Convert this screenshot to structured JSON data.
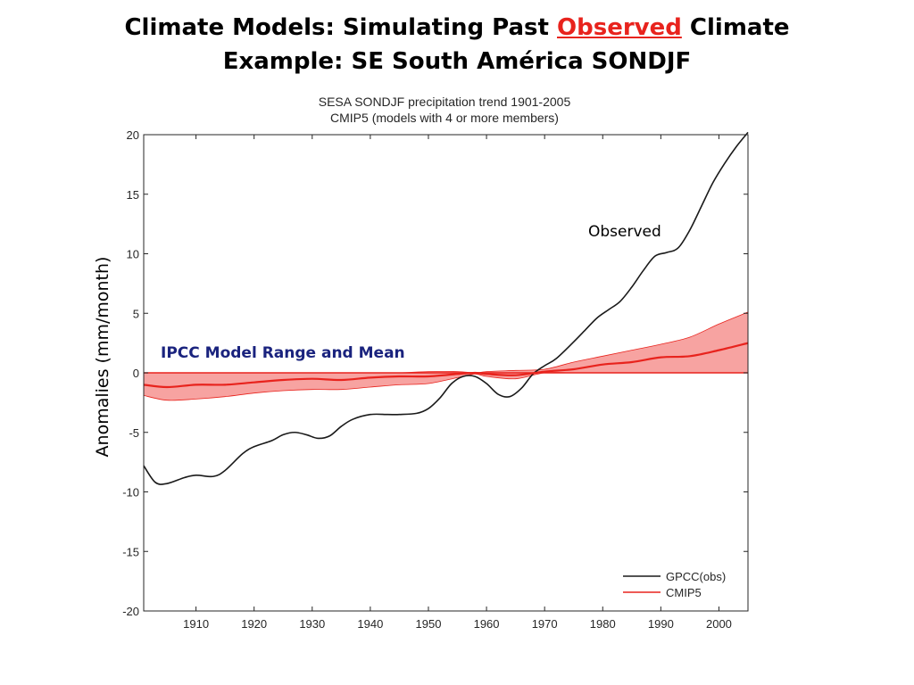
{
  "slide": {
    "title_part1": "Climate Models: Simulating Past ",
    "title_highlight": "Observed",
    "title_part2": " Climate",
    "title_line2": "Example:  SE South América SONDJF"
  },
  "annotations": {
    "observed": "Observed",
    "ipcc": "IPCC Model Range and Mean"
  },
  "colors": {
    "observed_line": "#1a1a1a",
    "model_mean": "#e8231d",
    "model_band": "#f7a3a1",
    "highlight": "#e8231d",
    "ipcc_label": "#1a237e"
  },
  "chart_data": {
    "type": "line",
    "title_line1": "SESA SONDJF precipitation trend 1901-2005",
    "title_line2": "CMIP5 (models with 4 or more members)",
    "xlabel": "",
    "ylabel": "Anomalies (mm/month)",
    "xlim": [
      1901,
      2005
    ],
    "ylim": [
      -20,
      20
    ],
    "xticks": [
      1910,
      1920,
      1930,
      1940,
      1950,
      1960,
      1970,
      1980,
      1990,
      2000
    ],
    "yticks": [
      -20,
      -15,
      -10,
      -5,
      0,
      5,
      10,
      15,
      20
    ],
    "legend_position": "bottom-right",
    "series": [
      {
        "name": "GPCC(obs)",
        "kind": "line",
        "x": [
          1901,
          1903,
          1905,
          1908,
          1910,
          1913,
          1915,
          1918,
          1920,
          1923,
          1925,
          1927,
          1929,
          1931,
          1933,
          1935,
          1937,
          1940,
          1943,
          1945,
          1948,
          1950,
          1952,
          1954,
          1956,
          1958,
          1960,
          1962,
          1964,
          1966,
          1968,
          1970,
          1972,
          1975,
          1977,
          1979,
          1981,
          1983,
          1985,
          1987,
          1989,
          1991,
          1993,
          1995,
          1997,
          1999,
          2001,
          2003,
          2005
        ],
        "values": [
          -7.8,
          -9.2,
          -9.3,
          -8.8,
          -8.6,
          -8.7,
          -8.2,
          -6.8,
          -6.2,
          -5.7,
          -5.2,
          -5.0,
          -5.2,
          -5.5,
          -5.3,
          -4.5,
          -3.9,
          -3.5,
          -3.5,
          -3.5,
          -3.4,
          -3.0,
          -2.1,
          -0.9,
          -0.3,
          -0.3,
          -0.9,
          -1.8,
          -2.0,
          -1.3,
          -0.1,
          0.6,
          1.2,
          2.6,
          3.6,
          4.6,
          5.3,
          6.0,
          7.2,
          8.6,
          9.8,
          10.1,
          10.5,
          12.0,
          14.0,
          16.0,
          17.6,
          19.0,
          20.2
        ]
      },
      {
        "name": "CMIP5",
        "kind": "line",
        "x": [
          1901,
          1905,
          1910,
          1915,
          1920,
          1925,
          1930,
          1935,
          1940,
          1945,
          1950,
          1955,
          1958,
          1960,
          1965,
          1970,
          1975,
          1980,
          1985,
          1990,
          1995,
          2000,
          2005
        ],
        "values": [
          -1.0,
          -1.2,
          -1.0,
          -1.0,
          -0.8,
          -0.6,
          -0.5,
          -0.6,
          -0.4,
          -0.3,
          -0.3,
          -0.1,
          0.0,
          -0.1,
          -0.2,
          0.1,
          0.3,
          0.7,
          0.9,
          1.3,
          1.4,
          1.9,
          2.5
        ]
      },
      {
        "name": "Model range",
        "kind": "band",
        "x": [
          1901,
          1905,
          1910,
          1915,
          1920,
          1925,
          1930,
          1935,
          1940,
          1945,
          1950,
          1955,
          1958,
          1960,
          1965,
          1970,
          1975,
          1980,
          1985,
          1990,
          1995,
          2000,
          2005
        ],
        "upper": [
          0.0,
          0.0,
          0.0,
          0.0,
          0.0,
          0.0,
          0.0,
          0.0,
          0.0,
          0.0,
          0.1,
          0.1,
          0.0,
          0.1,
          0.2,
          0.3,
          0.9,
          1.4,
          1.9,
          2.4,
          3.0,
          4.1,
          5.1
        ],
        "lower": [
          -1.9,
          -2.3,
          -2.2,
          -2.0,
          -1.7,
          -1.5,
          -1.4,
          -1.4,
          -1.2,
          -1.0,
          -0.9,
          -0.4,
          -0.1,
          -0.3,
          -0.5,
          0.0,
          0.0,
          0.0,
          0.0,
          0.0,
          0.0,
          0.0,
          0.0
        ]
      }
    ],
    "legend": [
      "GPCC(obs)",
      "CMIP5"
    ]
  }
}
